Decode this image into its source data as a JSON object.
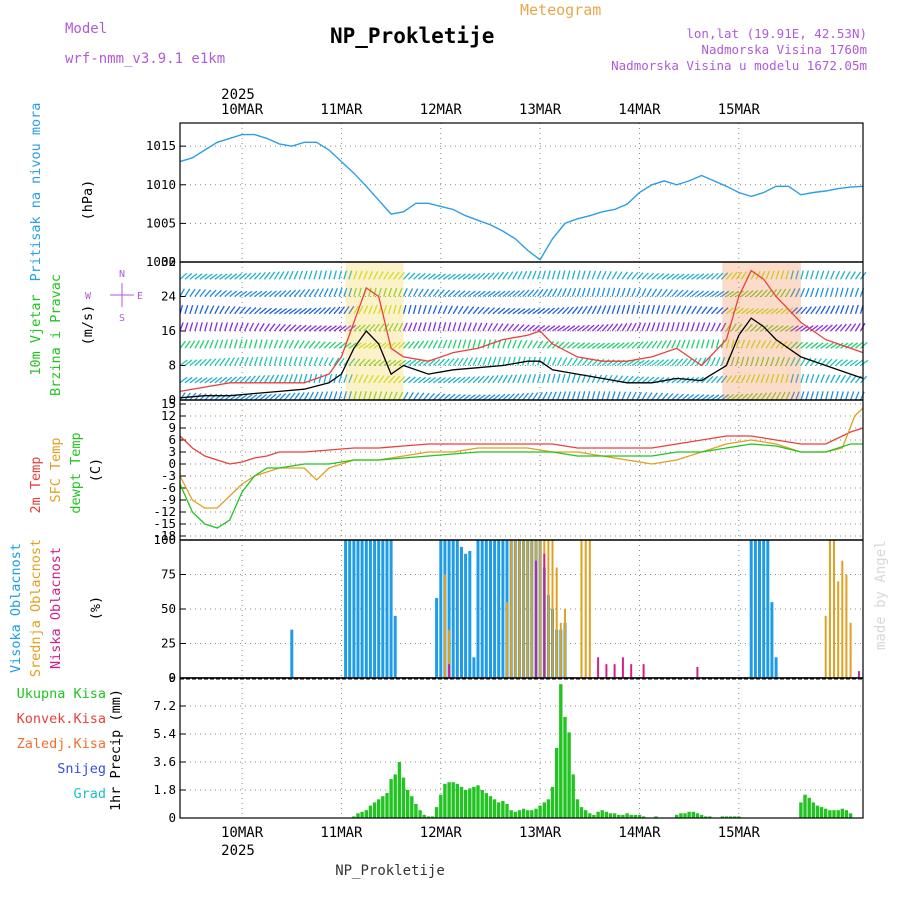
{
  "header": {
    "model_label": "Model",
    "model_name": "wrf-nmm_v3.9.1 e1km",
    "title": "NP_Prokletije",
    "subtitle": "Meteogram",
    "location": "lon,lat (19.91E, 42.53N)",
    "elevation": "Nadmorska Visina 1760m",
    "model_elevation": "Nadmorska Visina u modelu 1672.05m",
    "footer": "NP_Prokletije",
    "credit": "made by Angel"
  },
  "colors": {
    "pressure": "#2b9fe6",
    "wind_speed": "#000000",
    "gust": "#e8413c",
    "temp2m": "#e8413c",
    "sfc_temp": "#e0a020",
    "dewpt": "#21c421",
    "high_cloud": "#1f9ce8",
    "mid_cloud": "#e0a020",
    "low_cloud": "#d0208a",
    "precip": "#21c421",
    "grid": "#888888"
  },
  "chart_data": [
    {
      "type": "line",
      "panel": "pressure",
      "ylabel_lines": [
        "Pritisak na nivou mora"
      ],
      "unit": "(hPa)",
      "ylim": [
        1000,
        1018
      ],
      "yticks": [
        "1000",
        "1005",
        "1010",
        "1015"
      ],
      "xticks_top": [
        "10MAR",
        "11MAR",
        "12MAR",
        "13MAR",
        "14MAR",
        "15MAR"
      ],
      "year_top": "2025",
      "series": [
        {
          "x": [
            0,
            3,
            6,
            9,
            12,
            15,
            18,
            21,
            24,
            27,
            30,
            33,
            36,
            39,
            42,
            45,
            48,
            51,
            54,
            57,
            60,
            63,
            66,
            69,
            72,
            75,
            78,
            81,
            84,
            87,
            90,
            93,
            96,
            99,
            102,
            105,
            108,
            111,
            114,
            117,
            120,
            123,
            126,
            129,
            132,
            135,
            138,
            141,
            144,
            147,
            150,
            153,
            156,
            159,
            162,
            165
          ],
          "values": [
            1013,
            1013.5,
            1014.5,
            1015.5,
            1016,
            1016.5,
            1016.5,
            1016,
            1015.3,
            1015,
            1015.5,
            1015.5,
            1014.5,
            1013,
            1011.5,
            1009.8,
            1008,
            1006.2,
            1006.5,
            1007.6,
            1007.6,
            1007.2,
            1006.8,
            1006,
            1005.4,
            1004.8,
            1004,
            1003,
            1001.5,
            1000.3,
            1003,
            1005,
            1005.6,
            1006,
            1006.5,
            1006.8,
            1007.5,
            1009,
            1010,
            1010.5,
            1010,
            1010.5,
            1011.2,
            1010.5,
            1009.8,
            1009,
            1008.5,
            1009,
            1009.8,
            1009.8,
            1008.7,
            1009,
            1009.2,
            1009.5,
            1009.7,
            1009.8
          ]
        }
      ]
    },
    {
      "type": "line",
      "panel": "wind",
      "ylabel_lines": [
        "10m Vjetar",
        "Brzina i Pravac"
      ],
      "unit": "(m/s)",
      "compass": [
        "N",
        "E",
        "S",
        "W"
      ],
      "ylim": [
        0,
        32
      ],
      "yticks": [
        "0",
        "8",
        "16",
        "24",
        "32"
      ],
      "series": [
        {
          "name": "speed",
          "x": [
            0,
            6,
            12,
            18,
            24,
            30,
            36,
            39,
            42,
            45,
            48,
            51,
            54,
            60,
            66,
            72,
            78,
            84,
            87,
            90,
            96,
            102,
            108,
            114,
            120,
            126,
            132,
            135,
            138,
            141,
            144,
            150,
            156,
            162,
            165
          ],
          "values": [
            0.5,
            1,
            1,
            1.5,
            2,
            2.5,
            4,
            6,
            12,
            16,
            13,
            6,
            8,
            6,
            7,
            7.5,
            8,
            9,
            9,
            7,
            6,
            5,
            4,
            4,
            5,
            4.5,
            8,
            15,
            19,
            17,
            14,
            10,
            8,
            6,
            5
          ]
        },
        {
          "name": "gust",
          "x": [
            0,
            6,
            12,
            18,
            24,
            30,
            36,
            39,
            42,
            45,
            48,
            51,
            54,
            60,
            66,
            72,
            78,
            84,
            87,
            90,
            96,
            102,
            108,
            114,
            120,
            126,
            132,
            135,
            138,
            141,
            144,
            150,
            156,
            162,
            165
          ],
          "values": [
            2,
            3,
            4,
            4,
            4,
            4,
            6,
            10,
            18,
            26,
            24,
            12,
            10,
            9,
            11,
            12,
            14,
            15,
            16,
            13,
            10,
            9,
            9,
            10,
            12,
            8,
            14,
            24,
            30,
            28,
            24,
            18,
            14,
            12,
            11
          ]
        }
      ]
    },
    {
      "type": "line",
      "panel": "temperature",
      "ylabel_lines": [
        "2m Temp",
        "SFC Temp",
        "dewpt Temp"
      ],
      "unit": "(C)",
      "ylim": [
        -19,
        16
      ],
      "yticks": [
        "-18",
        "-15",
        "-12",
        "-9",
        "-6",
        "-3",
        "0",
        "3",
        "6",
        "9",
        "12",
        "15"
      ],
      "series": [
        {
          "name": "2m Temp",
          "x": [
            0,
            3,
            6,
            9,
            12,
            15,
            18,
            21,
            24,
            30,
            36,
            42,
            48,
            54,
            60,
            66,
            72,
            78,
            84,
            90,
            96,
            102,
            108,
            114,
            120,
            126,
            132,
            138,
            144,
            150,
            156,
            162,
            165
          ],
          "values": [
            7,
            4,
            2,
            1,
            0,
            0.5,
            1.5,
            2,
            3,
            3,
            3.5,
            4,
            4,
            4.5,
            5,
            5,
            5,
            5,
            5,
            5,
            4,
            4,
            4,
            4,
            5,
            6,
            7,
            7,
            6,
            5,
            5,
            8,
            9
          ]
        },
        {
          "name": "SFC Temp",
          "x": [
            0,
            3,
            6,
            9,
            12,
            15,
            18,
            21,
            24,
            30,
            33,
            36,
            42,
            48,
            54,
            60,
            66,
            72,
            78,
            84,
            90,
            96,
            102,
            108,
            114,
            120,
            126,
            132,
            138,
            144,
            150,
            156,
            160,
            163,
            165
          ],
          "values": [
            -3,
            -9,
            -11,
            -11,
            -8,
            -5,
            -3,
            -2,
            -1,
            -1,
            -4,
            -1,
            1,
            1,
            2,
            3,
            3,
            4,
            4,
            4,
            3,
            3,
            2,
            1,
            0,
            1,
            3,
            5,
            6,
            5,
            3,
            3,
            4,
            12,
            14
          ]
        },
        {
          "name": "dewpt Temp",
          "x": [
            0,
            3,
            6,
            9,
            12,
            15,
            18,
            21,
            24,
            30,
            36,
            42,
            48,
            54,
            60,
            66,
            72,
            78,
            84,
            90,
            96,
            102,
            108,
            114,
            120,
            126,
            132,
            138,
            144,
            150,
            156,
            162,
            165
          ],
          "values": [
            -5,
            -12,
            -15,
            -16,
            -14,
            -7,
            -3,
            -1,
            -1,
            0,
            0,
            1,
            1,
            1.5,
            2,
            2.5,
            3,
            3,
            3,
            3,
            2,
            2,
            2,
            2,
            3,
            3,
            4,
            5,
            4.5,
            3,
            3,
            5,
            5
          ]
        }
      ]
    },
    {
      "type": "bar",
      "panel": "cloud",
      "ylabel_lines": [
        "Visoka Oblacnost",
        "Srednja Oblacnost",
        "Niska Oblacnost"
      ],
      "unit": "(%)",
      "ylim": [
        0,
        100
      ],
      "yticks": [
        "0",
        "25",
        "50",
        "75",
        "100"
      ],
      "series": [
        {
          "name": "Visoka",
          "x": [
            27,
            40,
            41,
            42,
            43,
            44,
            45,
            46,
            47,
            48,
            49,
            50,
            51,
            52,
            62,
            63,
            64,
            65,
            66,
            67,
            68,
            69,
            70,
            71,
            72,
            73,
            74,
            75,
            76,
            77,
            78,
            79,
            80,
            81,
            82,
            83,
            84,
            85,
            86,
            87,
            88,
            89,
            90,
            91,
            92,
            93,
            138,
            139,
            140,
            141,
            142,
            143,
            144
          ],
          "values": [
            35,
            100,
            100,
            100,
            100,
            100,
            100,
            100,
            100,
            100,
            100,
            100,
            100,
            45,
            58,
            100,
            100,
            100,
            100,
            100,
            95,
            90,
            92,
            15,
            100,
            100,
            100,
            100,
            100,
            100,
            100,
            100,
            100,
            100,
            100,
            100,
            100,
            100,
            100,
            100,
            80,
            60,
            50,
            35,
            35,
            40,
            100,
            100,
            100,
            100,
            100,
            55,
            15
          ]
        },
        {
          "name": "Srednja",
          "x": [
            64,
            65,
            79,
            80,
            81,
            82,
            83,
            84,
            85,
            86,
            87,
            88,
            89,
            90,
            91,
            92,
            93,
            97,
            98,
            99,
            156,
            157,
            158,
            159,
            160,
            161,
            162
          ],
          "values": [
            75,
            35,
            55,
            100,
            100,
            100,
            100,
            100,
            100,
            100,
            100,
            100,
            100,
            100,
            80,
            40,
            50,
            100,
            100,
            100,
            45,
            100,
            100,
            70,
            85,
            75,
            40
          ]
        },
        {
          "name": "Niska",
          "x": [
            65,
            86,
            88,
            101,
            103,
            105,
            107,
            109,
            112,
            125,
            164
          ],
          "values": [
            10,
            85,
            90,
            15,
            10,
            10,
            15,
            10,
            10,
            8,
            5
          ]
        }
      ]
    },
    {
      "type": "bar",
      "panel": "precip",
      "ylabel_lines": [
        "Ukupna Kisa",
        "Konvek.Kisa",
        "Zaledj.Kisa",
        "Snijeg",
        "Grad"
      ],
      "unit": "1hr Precip (mm)",
      "ylim": [
        0,
        9
      ],
      "yticks": [
        "0",
        "1.8",
        "3.6",
        "5.4",
        "7.2",
        "9"
      ],
      "xticks_bottom": [
        "10MAR",
        "11MAR",
        "12MAR",
        "13MAR",
        "14MAR",
        "15MAR"
      ],
      "year_bottom": "2025",
      "series": [
        {
          "name": "Ukupna Kisa",
          "x": [
            42,
            43,
            44,
            45,
            46,
            47,
            48,
            49,
            50,
            51,
            52,
            53,
            54,
            55,
            56,
            57,
            58,
            59,
            60,
            61,
            62,
            63,
            64,
            65,
            66,
            67,
            68,
            69,
            70,
            71,
            72,
            73,
            74,
            75,
            76,
            77,
            78,
            79,
            80,
            81,
            82,
            83,
            84,
            85,
            86,
            87,
            88,
            89,
            90,
            91,
            92,
            93,
            94,
            95,
            96,
            97,
            98,
            99,
            100,
            101,
            102,
            103,
            104,
            105,
            106,
            107,
            108,
            109,
            110,
            111,
            112,
            115,
            120,
            121,
            122,
            123,
            124,
            125,
            126,
            127,
            128,
            131,
            132,
            133,
            134,
            135,
            150,
            151,
            152,
            153,
            154,
            155,
            156,
            157,
            158,
            159,
            160,
            161,
            162
          ],
          "values": [
            0.1,
            0.3,
            0.4,
            0.5,
            0.8,
            1,
            1.2,
            1.4,
            1.6,
            2.5,
            2.8,
            3.6,
            2.6,
            1.8,
            1.4,
            0.9,
            0.5,
            0.2,
            0.1,
            0.1,
            0.7,
            1.5,
            2.2,
            2.3,
            2.3,
            2.2,
            2,
            1.8,
            1.9,
            2,
            2.1,
            1.8,
            1.6,
            1.4,
            1.2,
            1,
            1.1,
            0.9,
            0.5,
            0.4,
            0.5,
            0.6,
            0.5,
            0.5,
            0.6,
            0.8,
            1,
            1.2,
            2,
            4.5,
            8.6,
            6.5,
            5.5,
            2.8,
            1.2,
            0.7,
            0.5,
            0.3,
            0.2,
            0.4,
            0.5,
            0.4,
            0.3,
            0.3,
            0.2,
            0.2,
            0.3,
            0.2,
            0.2,
            0.2,
            0.1,
            0.1,
            0.2,
            0.3,
            0.3,
            0.4,
            0.4,
            0.3,
            0.2,
            0.1,
            0.1,
            0.1,
            0.1,
            0.1,
            0.1,
            0.1,
            1,
            1.5,
            1.3,
            1,
            0.8,
            0.7,
            0.6,
            0.5,
            0.5,
            0.5,
            0.6,
            0.5,
            0.3
          ]
        }
      ]
    }
  ]
}
